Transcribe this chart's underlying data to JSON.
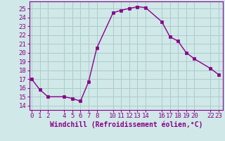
{
  "x": [
    0,
    1,
    2,
    4,
    5,
    6,
    7,
    8,
    10,
    11,
    12,
    13,
    14,
    16,
    17,
    18,
    19,
    20,
    22,
    23
  ],
  "y": [
    17,
    15.8,
    15,
    15,
    14.8,
    14.5,
    16.7,
    20.5,
    24.5,
    24.8,
    25.0,
    25.2,
    25.1,
    23.5,
    21.8,
    21.3,
    20.0,
    19.3,
    18.2,
    17.5
  ],
  "line_color": "#880088",
  "marker_color": "#880088",
  "bg_color": "#d0e8e8",
  "grid_color": "#aacccc",
  "xlabel": "Windchill (Refroidissement éolien,°C)",
  "xlabel_color": "#880088",
  "xticks": [
    0,
    1,
    2,
    4,
    5,
    6,
    7,
    8,
    10,
    11,
    12,
    13,
    14,
    16,
    17,
    18,
    19,
    20,
    22,
    23
  ],
  "xtick_labels": [
    "0",
    "1",
    "2",
    "4",
    "5",
    "6",
    "7",
    "8",
    "10",
    "11",
    "12",
    "13",
    "14",
    "16",
    "17",
    "18",
    "19",
    "20",
    "22",
    "23"
  ],
  "yticks": [
    14,
    15,
    16,
    17,
    18,
    19,
    20,
    21,
    22,
    23,
    24,
    25
  ],
  "ylim": [
    13.5,
    25.8
  ],
  "xlim": [
    -0.3,
    23.5
  ],
  "tick_color": "#880088",
  "spine_color": "#880088",
  "fontsize_xlabel": 7.0,
  "fontsize_ticks": 6.5
}
